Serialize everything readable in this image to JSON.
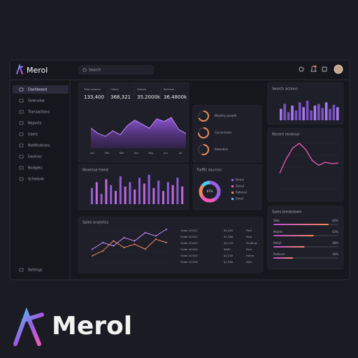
{
  "header": {
    "logo": "Merol",
    "search": "Search"
  },
  "sidebar": {
    "items": [
      "Dashboard",
      "Overview",
      "Transactions",
      "Reports",
      "Users",
      "Notifications",
      "Devices",
      "Budgets",
      "Schedule"
    ],
    "footer": "Settings"
  },
  "stats": [
    {
      "label": "Total revenue",
      "value": "133,400"
    },
    {
      "label": "Orders",
      "value": "368,321"
    },
    {
      "label": "Visitors",
      "value": "35.2000k"
    },
    {
      "label": "Revenue",
      "value": "36.4800k"
    }
  ],
  "area_chart": {
    "categories": [
      "Jan",
      "Feb",
      "Mar",
      "Apr",
      "May",
      "Jun",
      "Jul"
    ],
    "values": [
      30,
      22,
      18,
      26,
      20,
      34,
      42,
      36,
      30,
      44,
      40,
      46,
      28,
      22
    ]
  },
  "rings": [
    {
      "label": "Monthly growth",
      "value": 68
    },
    {
      "label": "Conversions",
      "value": 74
    },
    {
      "label": "Retention",
      "value": 55
    }
  ],
  "search_actions": {
    "title": "Search actions",
    "values": [
      14,
      20,
      10,
      18,
      12,
      22,
      16,
      24,
      12,
      18,
      20,
      15,
      22,
      14,
      19,
      16
    ]
  },
  "revenue": {
    "title": "Recent revenue",
    "values": [
      20,
      38,
      52,
      58,
      50,
      36,
      30,
      34,
      32,
      33
    ]
  },
  "bar_chart": {
    "title": "Revenue trend",
    "values": [
      22,
      30,
      14,
      34,
      26,
      18,
      38,
      24,
      30,
      20,
      36,
      28,
      40,
      22,
      32,
      18,
      30,
      26,
      36,
      24
    ]
  },
  "donut": {
    "title": "Traffic sources",
    "center": "87%",
    "labels": [
      "Direct",
      "Social",
      "Referral",
      "Email"
    ],
    "values": [
      40,
      25,
      20,
      15
    ]
  },
  "line_chart": {
    "title": "Sales analytics",
    "series": [
      [
        20,
        28,
        24,
        34,
        30,
        40,
        36,
        44
      ],
      [
        12,
        18,
        30,
        22,
        26,
        20,
        32,
        28
      ]
    ]
  },
  "table": {
    "rows": [
      [
        "Order #1021",
        "$2,450",
        "Paid"
      ],
      [
        "Order #1022",
        "$1,380",
        "Paid"
      ],
      [
        "Order #1023",
        "$3,120",
        "Pending"
      ],
      [
        "Order #1024",
        "$980",
        "Paid"
      ],
      [
        "Order #1025",
        "$2,040",
        "Failed"
      ],
      [
        "Order #1026",
        "$1,560",
        "Paid"
      ]
    ]
  },
  "progress": {
    "title": "Sales breakdown",
    "items": [
      {
        "label": "Web",
        "value": 85,
        "value_label": "85%"
      },
      {
        "label": "Mobile",
        "value": 62,
        "value_label": "62%"
      },
      {
        "label": "Retail",
        "value": 48,
        "value_label": "48%"
      },
      {
        "label": "Partners",
        "value": 30,
        "value_label": "30%"
      }
    ]
  },
  "brand": {
    "name": "Merol"
  }
}
